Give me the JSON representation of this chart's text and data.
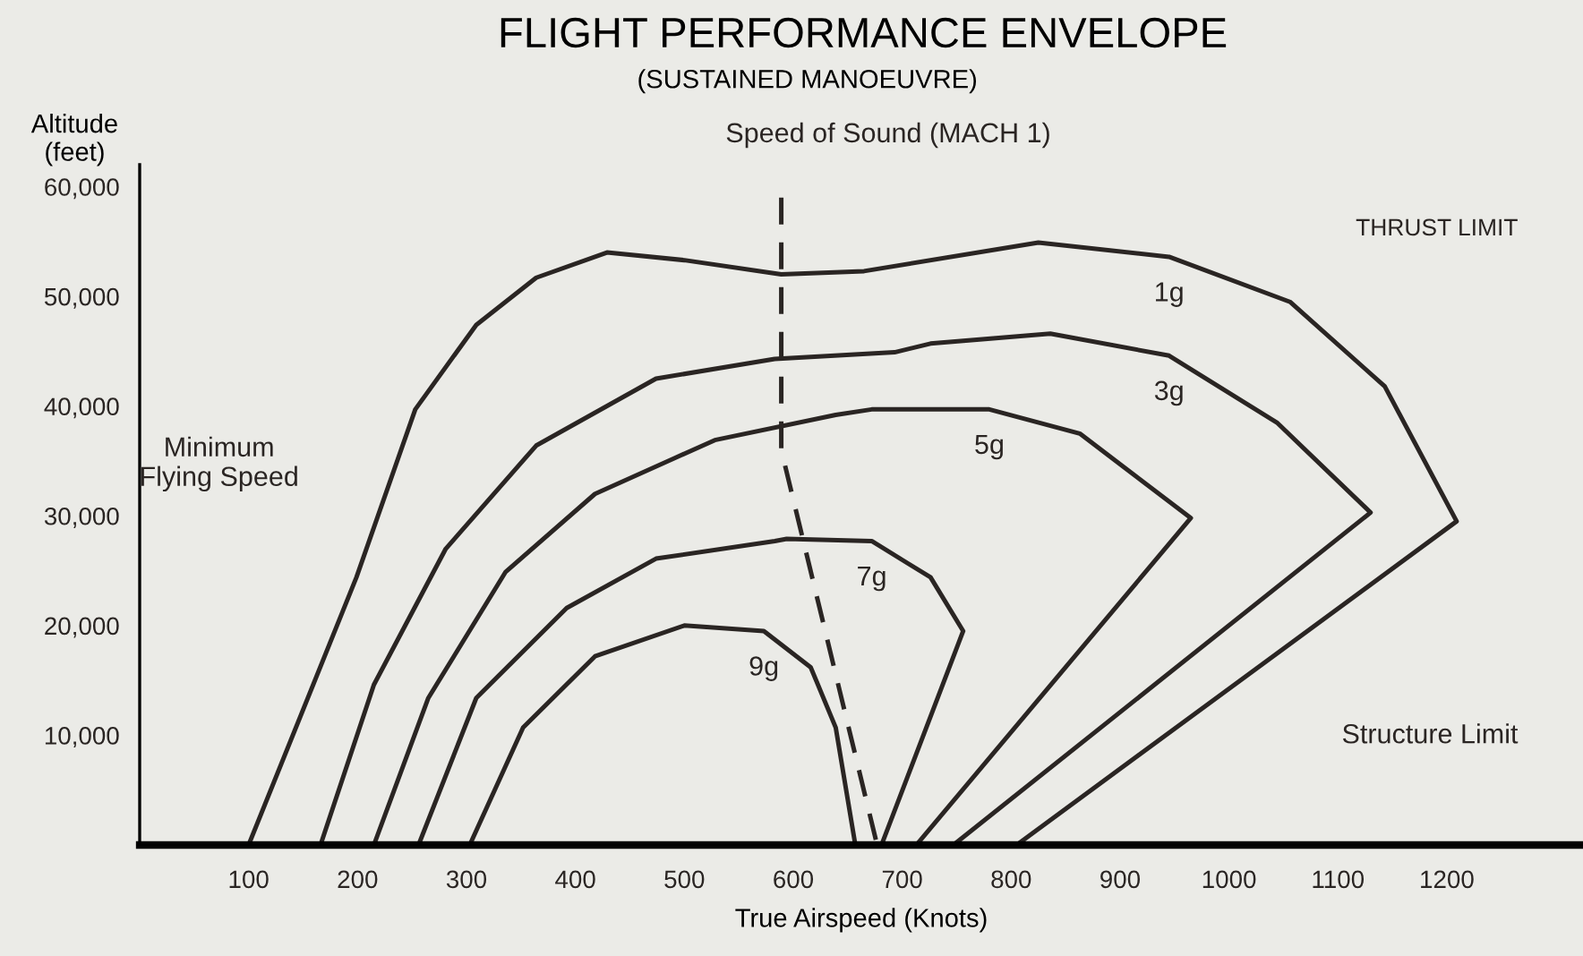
{
  "chart_data": {
    "type": "line",
    "title": "FLIGHT PERFORMANCE ENVELOPE",
    "subtitle": "(SUSTAINED MANOEUVRE)",
    "xlabel": "True Airspeed (Knots)",
    "ylabel": "Altitude\n(feet)",
    "annotations": [
      "THRUST LIMIT",
      "Minimum\nFlying Speed",
      "Structure Limit"
    ],
    "xlim": [
      0,
      1325
    ],
    "ylim": [
      0,
      62000
    ],
    "xticks": [
      100,
      200,
      300,
      400,
      500,
      600,
      700,
      800,
      900,
      1000,
      1100,
      1200
    ],
    "yticks": [
      {
        "value": 10000,
        "label": "10,000"
      },
      {
        "value": 20000,
        "label": "20,000"
      },
      {
        "value": 30000,
        "label": "30,000"
      },
      {
        "value": 40000,
        "label": "40,000"
      },
      {
        "value": 50000,
        "label": "50,000"
      },
      {
        "value": 60000,
        "label": "60,000"
      }
    ],
    "grid": false,
    "legend": false,
    "line_style": "solid",
    "series": [
      {
        "name": "1g",
        "color": "#2a2523",
        "x": [
          100,
          199,
          253,
          309,
          364,
          429,
          500,
          589,
          665,
          825,
          945,
          1056,
          1143,
          1209,
          805
        ],
        "values": [
          0,
          24400,
          39700,
          47400,
          51700,
          54000,
          53300,
          52000,
          52300,
          54900,
          53600,
          49500,
          41800,
          29500,
          0
        ]
      },
      {
        "name": "3g",
        "color": "#2a2523",
        "x": [
          166,
          215,
          281,
          364,
          474,
          583,
          693,
          726,
          836,
          945,
          1044,
          1130,
          747
        ],
        "values": [
          0,
          14600,
          27000,
          36400,
          42500,
          44300,
          44900,
          45700,
          46600,
          44600,
          38500,
          30300,
          0
        ]
      },
      {
        "name": "5g",
        "color": "#2a2523",
        "x": [
          215,
          265,
          336,
          418,
          528,
          639,
          672,
          780,
          863,
          965,
          713
        ],
        "values": [
          0,
          13400,
          24900,
          32000,
          36900,
          39200,
          39700,
          39700,
          37500,
          29800,
          0
        ]
      },
      {
        "name": "7g",
        "color": "#2a2523",
        "x": [
          256,
          309,
          392,
          474,
          583,
          594,
          672,
          726,
          756,
          681
        ],
        "values": [
          0,
          13400,
          21600,
          26100,
          27700,
          27900,
          27700,
          24400,
          19500,
          0
        ]
      },
      {
        "name": "9g",
        "color": "#2a2523",
        "x": [
          303,
          352,
          418,
          500,
          573,
          616,
          639,
          657
        ],
        "values": [
          0,
          10700,
          17200,
          20000,
          19500,
          16200,
          10700,
          0
        ]
      },
      {
        "name": "Speed of Sound (MACH 1)",
        "color": "#2a2523",
        "line_style": "dashed",
        "x": [
          589,
          589,
          677
        ],
        "values": [
          59000,
          36000,
          0
        ]
      }
    ]
  }
}
